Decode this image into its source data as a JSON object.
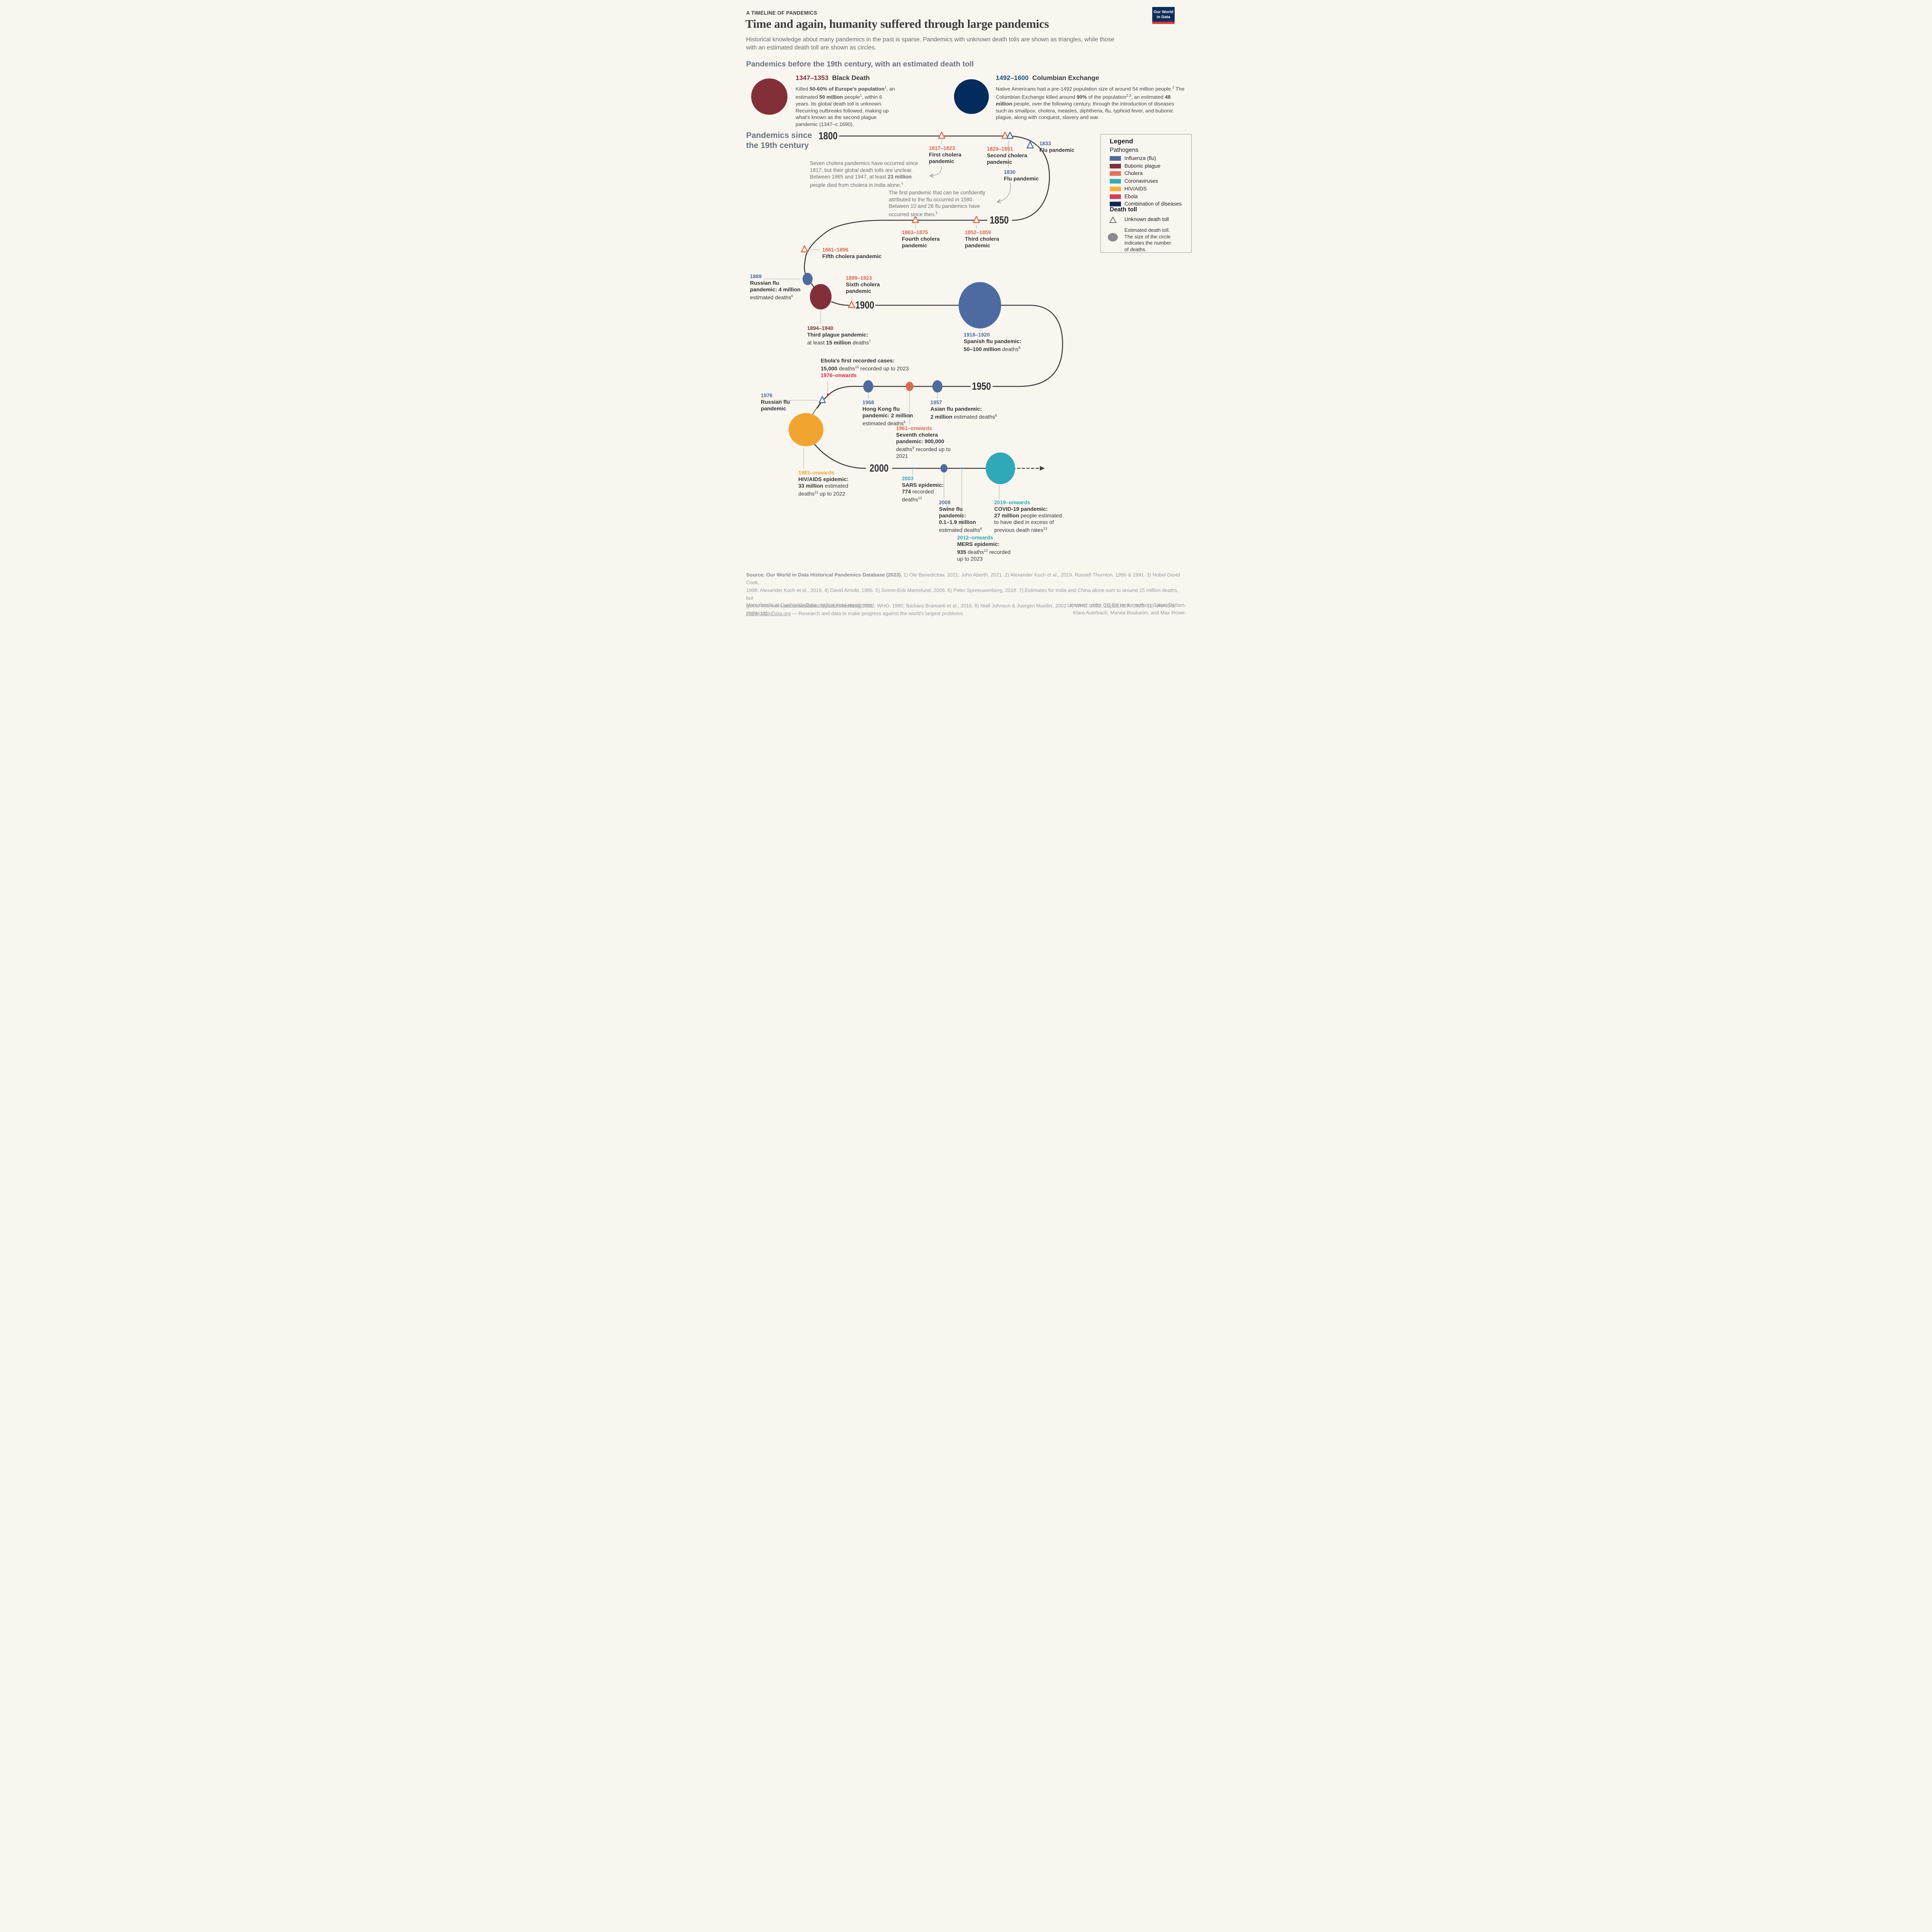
{
  "palette": {
    "bg": "#F8F6EF",
    "flu": "#4D6BA0",
    "plague": "#832F3A",
    "cholera": "#E0684F",
    "corona": "#2FA8B8",
    "hiv": "#F2A52E",
    "ebola": "#D92845",
    "combo": "#022C5C",
    "spine": "#3F3F3F",
    "connector": "#BDBDBD",
    "columbian_date": "#1E5083"
  },
  "header": {
    "kicker": "A TIMELINE OF PANDEMICS",
    "title": "Time and again, humanity suffered through large pandemics",
    "subtitle_lines": [
      "Historical knowledge about many pandemics in the past is sparse. Pandemics with unknown death tolls are shown as triangles, while those",
      "with an estimated death toll are shown as circles."
    ],
    "logo": {
      "line1": "Our World",
      "line2": "in Data"
    }
  },
  "section_before": {
    "heading": "Pandemics before the 19th century, with an estimated death toll",
    "black_death": {
      "dates": "1347–1353",
      "name": "Black Death",
      "body": [
        {
          "t": "Killed "
        },
        {
          "t": "50-60% of Europe's population",
          "b": 1
        },
        {
          "t": "1",
          "sup": 1
        },
        {
          "t": ", an estimated "
        },
        {
          "t": "50 million",
          "b": 1
        },
        {
          "t": " people"
        },
        {
          "t": "1",
          "sup": 1
        },
        {
          "t": ", within 6 years. Its global death toll is unknown. Recurring outbreaks followed, making up what's known as the second plague pandemic (1347–c.1690)."
        }
      ]
    },
    "columbian": {
      "dates": "1492–1600",
      "name": "Columbian Exchange",
      "body": [
        {
          "t": "Native Americans had a pre-1492 population size of around 54 million people."
        },
        {
          "t": "2",
          "sup": 1
        },
        {
          "t": " The Columbian Exchange killed around "
        },
        {
          "t": "90%",
          "b": 1
        },
        {
          "t": " of the population"
        },
        {
          "t": "2,3",
          "sup": 1
        },
        {
          "t": ", an estimated "
        },
        {
          "t": "48 million",
          "b": 1
        },
        {
          "t": " people, over the following century, through the introduction of diseases such as smallpox, cholera, measles, diphtheria, flu, typhoid fever, and bubonic plague, along with conquest, slavery and war."
        }
      ]
    }
  },
  "section_since": {
    "heading_lines": [
      "Pandemics since",
      "the 19th century"
    ]
  },
  "legend": {
    "title": "Legend",
    "pathogens_label": "Pathogens",
    "items": [
      {
        "key": "flu",
        "label": "Influenza (flu)",
        "color": "#4D6BA0"
      },
      {
        "key": "plague",
        "label": "Bubonic plague",
        "color": "#832F3A"
      },
      {
        "key": "cholera",
        "label": "Cholera",
        "color": "#E57059"
      },
      {
        "key": "corona",
        "label": "Coronaviruses",
        "color": "#39ABB8"
      },
      {
        "key": "hiv",
        "label": "HIV/AIDS",
        "color": "#F8B03C"
      },
      {
        "key": "ebola",
        "label": "Ebola",
        "color": "#D63E55"
      },
      {
        "key": "combo",
        "label": "Combination of diseases",
        "color": "#022C5C"
      }
    ],
    "death_toll_label": "Death toll",
    "unknown_label": "Unknown death toll",
    "estimated_lines": [
      "Estimated death toll.",
      "The size of the circle",
      "indicates the number",
      "of deaths."
    ]
  },
  "years": [
    "1800",
    "1850",
    "1900",
    "1950",
    "2000"
  ],
  "annotations": {
    "cholera": [
      {
        "t": "Seven cholera pandemics have occurred since"
      },
      {
        "t": "\n"
      },
      {
        "t": "1817, but their global death tolls are unclear."
      },
      {
        "t": "\n"
      },
      {
        "t": "Between 1865 and 1947, at least "
      },
      {
        "t": "23 million",
        "b": 1
      },
      {
        "t": "\n"
      },
      {
        "t": "people died from cholera in India alone."
      },
      {
        "t": "4",
        "sup": 1
      }
    ],
    "flu": [
      {
        "t": "The first pandemic that can be confidently"
      },
      {
        "t": "\n"
      },
      {
        "t": "attributed to the flu occurred in 1580."
      },
      {
        "t": "\n"
      },
      {
        "t": "Between 10 and 26 flu pandemics have"
      },
      {
        "t": "\n"
      },
      {
        "t": "occurred since then."
      },
      {
        "t": "5",
        "sup": 1
      }
    ]
  },
  "events": [
    {
      "id": "first_cholera",
      "pathogen": "cholera",
      "date": "1817–1823",
      "lines": [
        [
          {
            "t": "First cholera",
            "b": 1
          }
        ],
        [
          {
            "t": "pandemic",
            "b": 1
          }
        ]
      ]
    },
    {
      "id": "second_cholera",
      "pathogen": "cholera",
      "date": "1829–1851",
      "lines": [
        [
          {
            "t": "Second cholera",
            "b": 1
          }
        ],
        [
          {
            "t": "pandemic",
            "b": 1
          }
        ]
      ]
    },
    {
      "id": "flu_1830",
      "pathogen": "flu",
      "date": "1830",
      "lines": [
        [
          {
            "t": "Flu pandemic",
            "b": 1
          }
        ]
      ]
    },
    {
      "id": "flu_1833",
      "pathogen": "flu",
      "date": "1833",
      "lines": [
        [
          {
            "t": "Flu pandemic",
            "b": 1
          }
        ]
      ]
    },
    {
      "id": "fourth_cholera",
      "pathogen": "cholera",
      "date": "1863–1875",
      "lines": [
        [
          {
            "t": "Fourth cholera",
            "b": 1
          }
        ],
        [
          {
            "t": "pandemic",
            "b": 1
          }
        ]
      ]
    },
    {
      "id": "third_cholera",
      "pathogen": "cholera",
      "date": "1852–1859",
      "lines": [
        [
          {
            "t": "Third cholera",
            "b": 1
          }
        ],
        [
          {
            "t": "pandemic",
            "b": 1
          }
        ]
      ]
    },
    {
      "id": "fifth_cholera",
      "pathogen": "cholera",
      "date": "1881–1896",
      "lines": [
        [
          {
            "t": "Fifth cholera pandemic",
            "b": 1
          }
        ]
      ]
    },
    {
      "id": "russian_1889",
      "pathogen": "flu",
      "date": "1889",
      "lines": [
        [
          {
            "t": "Russian flu",
            "b": 1
          }
        ],
        [
          {
            "t": "pandemic: 4 million",
            "b": 1
          }
        ],
        [
          {
            "t": "estimated deaths"
          },
          {
            "t": "6",
            "sup": 1
          }
        ]
      ]
    },
    {
      "id": "sixth_cholera",
      "pathogen": "cholera",
      "date": "1899–1923",
      "lines": [
        [
          {
            "t": "Sixth cholera",
            "b": 1
          }
        ],
        [
          {
            "t": "pandemic",
            "b": 1
          }
        ]
      ]
    },
    {
      "id": "third_plague",
      "pathogen": "plague",
      "date": "1894–1940",
      "lines": [
        [
          {
            "t": "Third plague pandemic:",
            "b": 1
          }
        ],
        [
          {
            "t": "at least "
          },
          {
            "t": "15 million",
            "b": 1
          },
          {
            "t": " deaths"
          },
          {
            "t": "7",
            "sup": 1
          }
        ]
      ]
    },
    {
      "id": "spanish",
      "pathogen": "flu",
      "date": "1918–1920",
      "lines": [
        [
          {
            "t": "Spanish flu pandemic:",
            "b": 1
          }
        ],
        [
          {
            "t": "50–100 million",
            "b": 1
          },
          {
            "t": " deaths"
          },
          {
            "t": "8",
            "sup": 1
          }
        ]
      ]
    },
    {
      "id": "ebola",
      "pathogen": "ebola",
      "date": "1976–onwards",
      "date_pos": "bottom",
      "lines": [
        [
          {
            "t": "Ebola's first recorded cases:",
            "b": 1
          }
        ],
        [
          {
            "t": "15,000",
            "b": 1
          },
          {
            "t": " deaths"
          },
          {
            "t": "10",
            "sup": 1
          },
          {
            "t": " recorded up to 2023"
          }
        ]
      ]
    },
    {
      "id": "russian_1976",
      "pathogen": "flu",
      "date": "1976",
      "lines": [
        [
          {
            "t": "Russian flu",
            "b": 1
          }
        ],
        [
          {
            "t": "pandemic",
            "b": 1
          }
        ]
      ]
    },
    {
      "id": "hongkong",
      "pathogen": "flu",
      "date": "1968",
      "lines": [
        [
          {
            "t": "Hong Kong flu",
            "b": 1
          }
        ],
        [
          {
            "t": "pandemic: 2 million",
            "b": 1
          }
        ],
        [
          {
            "t": "estimated deaths"
          },
          {
            "t": "6",
            "sup": 1
          }
        ]
      ]
    },
    {
      "id": "asian",
      "pathogen": "flu",
      "date": "1957",
      "lines": [
        [
          {
            "t": "Asian flu pandemic:",
            "b": 1
          }
        ],
        [
          {
            "t": "2 million",
            "b": 1
          },
          {
            "t": " estimated deaths"
          },
          {
            "t": "6",
            "sup": 1
          }
        ]
      ]
    },
    {
      "id": "seventh",
      "pathogen": "cholera",
      "date": "1961–onwards",
      "lines": [
        [
          {
            "t": "Seventh cholera",
            "b": 1
          }
        ],
        [
          {
            "t": "pandemic: 900,000",
            "b": 1
          }
        ],
        [
          {
            "t": "deaths"
          },
          {
            "t": "9",
            "sup": 1
          },
          {
            "t": " recorded up to"
          }
        ],
        [
          {
            "t": "2021"
          }
        ]
      ]
    },
    {
      "id": "hiv",
      "pathogen": "hiv",
      "date": "1981–onwards",
      "lines": [
        [
          {
            "t": "HIV/AIDS epidemic:",
            "b": 1
          }
        ],
        [
          {
            "t": "33 million",
            "b": 1
          },
          {
            "t": " estimated"
          }
        ],
        [
          {
            "t": "deaths"
          },
          {
            "t": "11",
            "sup": 1
          },
          {
            "t": " up to 2022"
          }
        ]
      ]
    },
    {
      "id": "sars",
      "pathogen": "corona",
      "date": "2003",
      "lines": [
        [
          {
            "t": "SARS epidemic:",
            "b": 1
          }
        ],
        [
          {
            "t": "774",
            "b": 1
          },
          {
            "t": " recorded"
          }
        ],
        [
          {
            "t": "deaths"
          },
          {
            "t": "12",
            "sup": 1
          }
        ]
      ]
    },
    {
      "id": "swine",
      "pathogen": "flu",
      "date": "2009",
      "lines": [
        [
          {
            "t": "Swine flu",
            "b": 1
          }
        ],
        [
          {
            "t": "pandemic:",
            "b": 1
          }
        ],
        [
          {
            "t": "0.1–1.9 million",
            "b": 1
          }
        ],
        [
          {
            "t": "estimated deaths"
          },
          {
            "t": "6",
            "sup": 1
          }
        ]
      ]
    },
    {
      "id": "mers",
      "pathogen": "corona",
      "date": "2012–onwards",
      "lines": [
        [
          {
            "t": "MERS epidemic:",
            "b": 1
          }
        ],
        [
          {
            "t": "935",
            "b": 1
          },
          {
            "t": " deaths"
          },
          {
            "t": "12",
            "sup": 1
          },
          {
            "t": " recorded"
          }
        ],
        [
          {
            "t": "up to 2023"
          }
        ]
      ]
    },
    {
      "id": "covid",
      "pathogen": "corona",
      "date": "2019–onwards",
      "lines": [
        [
          {
            "t": "COVID-19 pandemic:",
            "b": 1
          }
        ],
        [
          {
            "t": "27 million",
            "b": 1
          },
          {
            "t": " people estimated"
          }
        ],
        [
          {
            "t": "to have died in excess of"
          }
        ],
        [
          {
            "t": "previous death rates"
          },
          {
            "t": "13",
            "sup": 1
          }
        ]
      ]
    }
  ],
  "footer": {
    "source_lines": [
      [
        {
          "t": "Source: Our World in Data Historical Pandemics Database (2023).",
          "b": 1
        },
        {
          "t": " 1) Ole Benedictow, 2021; John Aberth, 2021. 2) Alexander Koch et al., 2019. Russell Thornton, 1990 & 1991. 3) Nobel David Cook,"
        }
      ],
      [
        {
          "t": "1998; Alexander Koch et al., 2019. 4) David Arnold, 1986. 5) Svenn-Erik Mamelund, 2008. 6) Peter Spreeuwenberg, 2018. 7) Estimates for India and China alone sum to around 15 million deaths, but"
        }
      ],
      [
        {
          "t": "global estimates are unavailable. Myron Echenberg, 2002; WHO, 1990; Barbara Bramanti et al., 2016. 8) Niall Johnson & Juergen Mueller, 2002. 9) WHO, 2022. 10) UKHSA, 2023. 11) UNAIDS, 2020. 12)"
        }
      ],
      [
        {
          "t": "WHO, 2023. 13) Excess mortality model for COVID-19 by The Economist, 2023."
        }
      ]
    ],
    "more_details": [
      {
        "t": "More details at "
      },
      {
        "t": "OurWorldinData.org/historical-pandemics",
        "u": 1,
        "link": 1
      }
    ],
    "bottom_left": [
      {
        "t": "OurWorldinData.org",
        "u": 1,
        "link": 1
      },
      {
        "t": " — Research and data to make progress against the world's largest problems."
      }
    ],
    "license_lines": [
      [
        {
          "t": "Licensed under "
        },
        {
          "t": "CC-BY",
          "u": 1,
          "link": 1
        },
        {
          "t": " by the authors Saloni Dattani,"
        }
      ],
      [
        {
          "t": "Klara Auerbach, Marwa Boukarim, and Max Roser."
        }
      ]
    ]
  }
}
